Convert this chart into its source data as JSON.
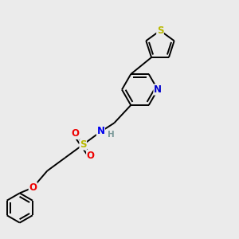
{
  "bg_color": "#ebebeb",
  "bond_color": "#000000",
  "atom_colors": {
    "S_sulfonamide": "#b8b800",
    "S_thiophene": "#b8b800",
    "N": "#0000ee",
    "N_pyridine": "#0000cc",
    "O": "#ee0000",
    "H": "#7a9999"
  },
  "figsize": [
    3.0,
    3.0
  ],
  "dpi": 100
}
